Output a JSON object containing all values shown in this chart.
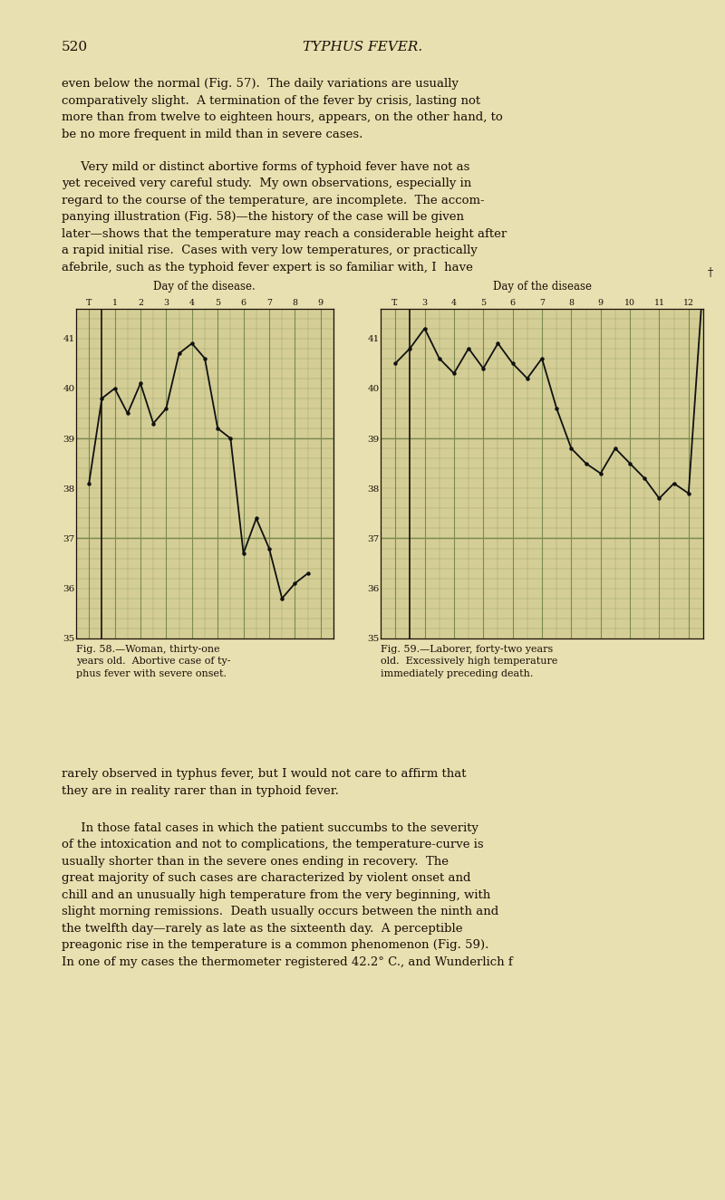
{
  "bg_color": "#e8e0b0",
  "page_number": "520",
  "page_title": "TYPHUS FEVER.",
  "text_color": "#1a1008",
  "fig_bg": "#d4ce96",
  "grid_color": "#7a8a50",
  "line_color": "#111111",
  "fig58_title": "Day of the disease.",
  "fig58_xlabel_days": [
    "T",
    "1",
    "2",
    "3",
    "4",
    "5",
    "6",
    "7",
    "8",
    "9"
  ],
  "fig58_data_x": [
    0.0,
    0.5,
    1.0,
    1.5,
    2.0,
    2.5,
    3.0,
    3.5,
    4.0,
    4.5,
    5.0,
    5.5,
    6.0,
    6.5,
    7.0,
    7.5,
    8.0,
    8.5
  ],
  "fig58_data_y": [
    38.1,
    39.8,
    40.0,
    39.5,
    40.1,
    39.3,
    39.6,
    40.7,
    40.9,
    40.6,
    39.2,
    39.0,
    36.7,
    37.4,
    36.8,
    35.8,
    36.1,
    36.3
  ],
  "fig58_caption_line1": "Fig. 58.—Woman, thirty-one",
  "fig58_caption_line2": "years old.  Abortive case of ty-",
  "fig58_caption_line3": "phus fever with severe onset.",
  "fig59_title": "Day of the disease",
  "fig59_xlabel_days": [
    "T.",
    "3",
    "4",
    "5",
    "6",
    "7",
    "8",
    "9",
    "10",
    "11",
    "12"
  ],
  "fig59_data_x": [
    0.0,
    0.5,
    1.0,
    1.5,
    2.0,
    2.5,
    3.0,
    3.5,
    4.0,
    4.5,
    5.0,
    5.5,
    6.0,
    6.5,
    7.0,
    7.5,
    8.0,
    8.5,
    9.0,
    9.5,
    10.0,
    10.5
  ],
  "fig59_data_y": [
    40.5,
    40.8,
    41.2,
    40.6,
    40.3,
    40.8,
    40.4,
    40.9,
    40.5,
    40.2,
    40.6,
    39.6,
    38.8,
    38.5,
    38.3,
    38.8,
    38.5,
    38.2,
    37.8,
    38.1,
    37.9,
    42.2
  ],
  "fig59_caption_line1": "Fig. 59.—Laborer, forty-two years",
  "fig59_caption_line2": "old.  Excessively high temperature",
  "fig59_caption_line3": "immediately preceding death.",
  "ytick_labels": [
    "35",
    "36",
    "37",
    "38",
    "39",
    "40",
    "41"
  ],
  "ytick_vals": [
    35,
    36,
    37,
    38,
    39,
    40,
    41
  ]
}
